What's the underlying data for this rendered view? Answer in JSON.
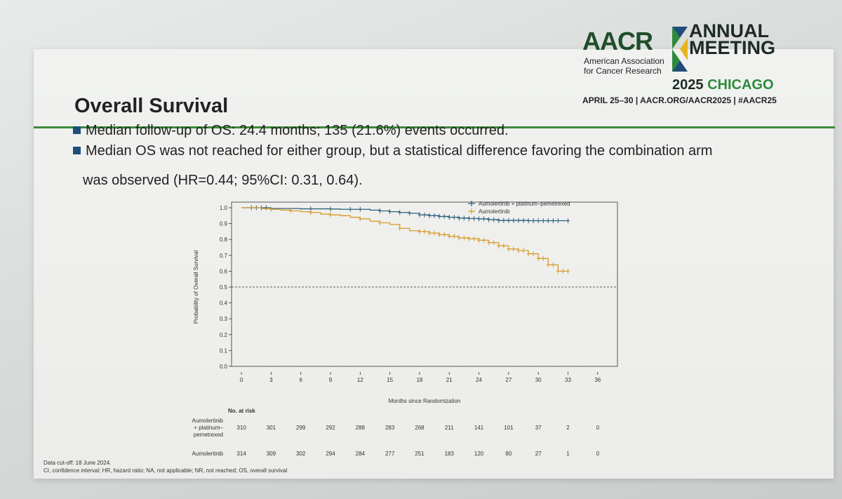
{
  "title": "Overall Survival",
  "bullets": [
    "Median follow-up of OS: 24.4 months; 135 (21.6%) events occurred.",
    "Median OS was not reached for either group, but a statistical difference favoring the combination arm",
    "was observed (HR=0.44; 95%CI: 0.31, 0.64)."
  ],
  "brand": {
    "org_logo": "AACR",
    "org_name_line1": "American Association",
    "org_name_line2": "for Cancer Research",
    "meeting_line1": "ANNUAL",
    "meeting_line2": "MEETING",
    "meeting_year": "2025",
    "meeting_city": "CHICAGO",
    "meeting_info": "APRIL 25–30  |  AACR.ORG/AACR2025  |  #AACR25"
  },
  "colors": {
    "combo": "#2f5f7c",
    "mono": "#d89a2a",
    "rule": "#3c8a3a"
  },
  "chart_data": {
    "type": "line",
    "xlabel": "Months since Randomization",
    "ylabel": "Probability of Overall Survival",
    "x_ticks": [
      0,
      3,
      6,
      9,
      12,
      15,
      18,
      21,
      24,
      27,
      30,
      33,
      36
    ],
    "y_ticks": [
      "0.0",
      "0.1",
      "0.2",
      "0.3",
      "0.4",
      "0.5",
      "0.6",
      "0.7",
      "0.8",
      "0.9",
      "1.0"
    ],
    "xlim": [
      -1,
      38
    ],
    "ylim": [
      0,
      1.0
    ],
    "reference_line_y": 0.5,
    "series": [
      {
        "name": "Aumolertinib + platinum–pemetrexed",
        "x": [
          0,
          1,
          2,
          3,
          4,
          5,
          6,
          7,
          8,
          9,
          10,
          11,
          12,
          13,
          14,
          15,
          16,
          17,
          18,
          19,
          20,
          21,
          22,
          23,
          24,
          25,
          26,
          27,
          28,
          29,
          30,
          31,
          32,
          33
        ],
        "y": [
          1.0,
          1.0,
          1.0,
          0.995,
          0.995,
          0.995,
          0.993,
          0.993,
          0.993,
          0.992,
          0.99,
          0.99,
          0.99,
          0.985,
          0.98,
          0.975,
          0.97,
          0.965,
          0.955,
          0.95,
          0.945,
          0.94,
          0.935,
          0.932,
          0.93,
          0.925,
          0.92,
          0.92,
          0.92,
          0.918,
          0.918,
          0.918,
          0.918,
          0.918
        ],
        "censor_x": [
          1,
          1.5,
          2,
          2.5,
          7,
          9,
          11,
          12,
          14,
          15,
          16,
          17,
          18,
          18.5,
          19,
          19.5,
          20,
          20.5,
          21,
          21.5,
          22,
          22.5,
          23,
          23.5,
          24,
          24.5,
          25,
          25.5,
          26,
          26.5,
          27,
          27.5,
          28,
          28.5,
          29,
          29.5,
          30,
          30.5,
          31,
          31.5,
          32,
          33
        ]
      },
      {
        "name": "Aumolertinib",
        "x": [
          0,
          1,
          2,
          3,
          4,
          5,
          6,
          7,
          8,
          9,
          10,
          11,
          12,
          13,
          14,
          15,
          16,
          17,
          18,
          19,
          20,
          21,
          22,
          23,
          24,
          25,
          26,
          27,
          28,
          29,
          30,
          31,
          32,
          33
        ],
        "y": [
          1.0,
          1.0,
          0.995,
          0.99,
          0.985,
          0.98,
          0.975,
          0.97,
          0.96,
          0.955,
          0.95,
          0.94,
          0.93,
          0.915,
          0.905,
          0.895,
          0.87,
          0.855,
          0.85,
          0.84,
          0.83,
          0.82,
          0.81,
          0.805,
          0.795,
          0.78,
          0.76,
          0.74,
          0.73,
          0.71,
          0.68,
          0.64,
          0.6,
          0.6
        ],
        "censor_x": [
          3,
          5,
          7,
          9,
          12,
          14,
          16,
          18,
          18.5,
          19,
          19.5,
          20,
          20.5,
          21,
          21.5,
          22,
          22.5,
          23,
          23.5,
          24,
          24.5,
          25,
          25.5,
          26,
          26.5,
          27,
          27.5,
          28,
          28.5,
          29,
          29.5,
          30,
          30.5,
          31,
          31.5,
          32,
          32.5,
          33
        ]
      }
    ],
    "risk_table": {
      "title": "No. at risk",
      "time_points": [
        0,
        3,
        6,
        9,
        12,
        15,
        18,
        21,
        24,
        27,
        30,
        33,
        36
      ],
      "rows": [
        {
          "label": [
            "Aumolertinib",
            "+ platinum–",
            "pemetrexed"
          ],
          "values": [
            310,
            301,
            299,
            292,
            288,
            283,
            268,
            211,
            141,
            101,
            37,
            2,
            0
          ]
        },
        {
          "label": [
            "Aumolertinib"
          ],
          "values": [
            314,
            309,
            302,
            294,
            284,
            277,
            251,
            183,
            120,
            80,
            27,
            1,
            0
          ]
        }
      ]
    }
  },
  "footnotes": [
    "Data cut-off: 18 June 2024.",
    "CI, confidence interval; HR, hazard ratio; NA, not applicable; NR, not reached; OS, overall survival"
  ]
}
